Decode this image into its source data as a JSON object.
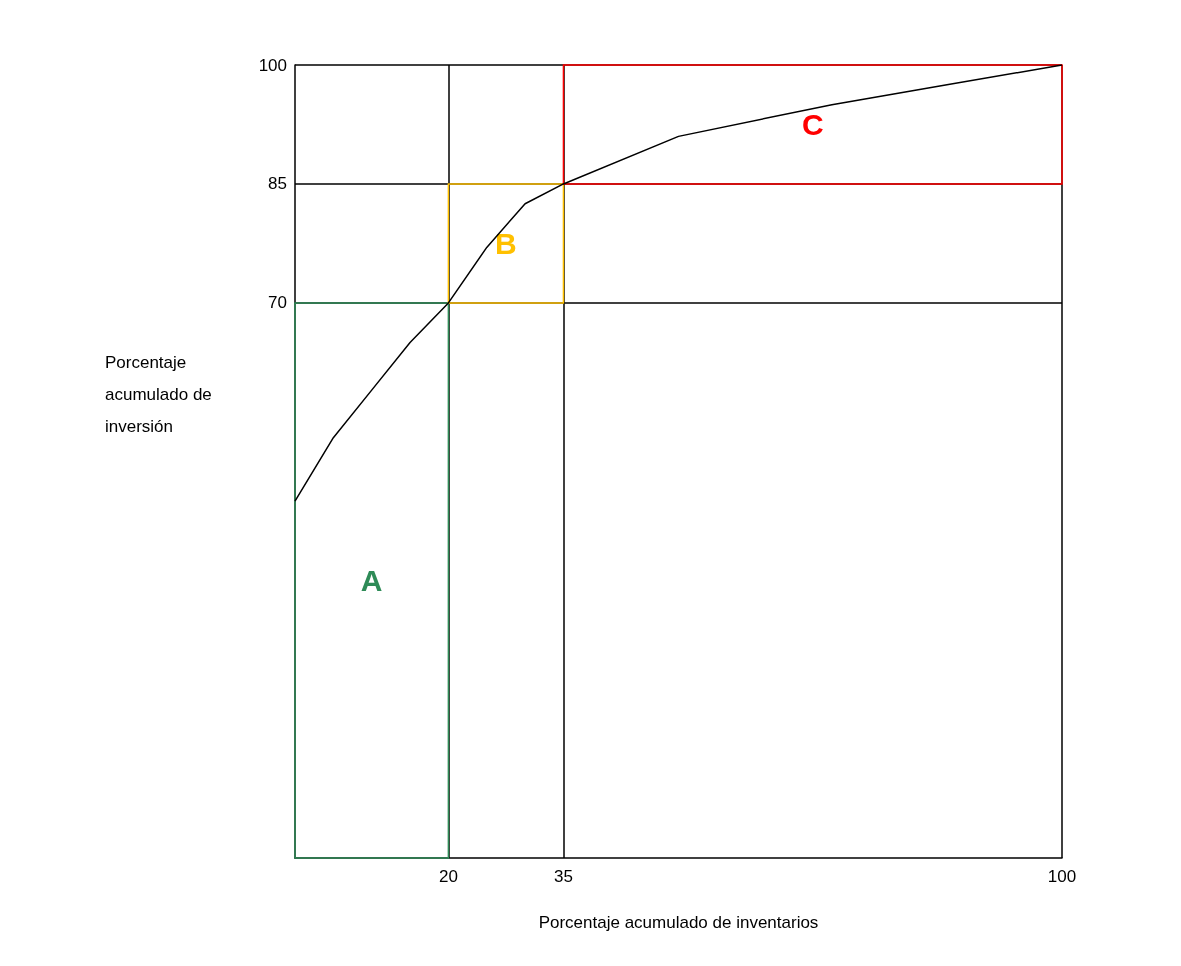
{
  "chart_data": {
    "type": "line",
    "xlabel": "Porcentaje acumulado de inventarios",
    "ylabel": "Porcentaje acumulado de inversión",
    "xlim": [
      0,
      100
    ],
    "ylim": [
      0,
      100
    ],
    "xticks": [
      20,
      35,
      100
    ],
    "yticks": [
      70,
      85,
      100
    ],
    "grid": true,
    "series": [
      {
        "color": "#000000",
        "x": [
          0,
          5,
          10,
          15,
          20,
          25,
          30,
          35,
          50,
          70,
          85,
          100
        ],
        "values": [
          45,
          53,
          59,
          65,
          70,
          77,
          82.5,
          85,
          91,
          95,
          97.5,
          100
        ]
      },
      {
        "type": "histogram",
        "bins": [
          0,
          20,
          35,
          100
        ],
        "base": [
          0,
          70,
          85
        ],
        "values": [
          70,
          15,
          15
        ],
        "colors": [
          "#2e8b57",
          "#ffc000",
          "#ff0000"
        ],
        "value_labels": [
          "A",
          "B",
          "C"
        ]
      }
    ]
  }
}
